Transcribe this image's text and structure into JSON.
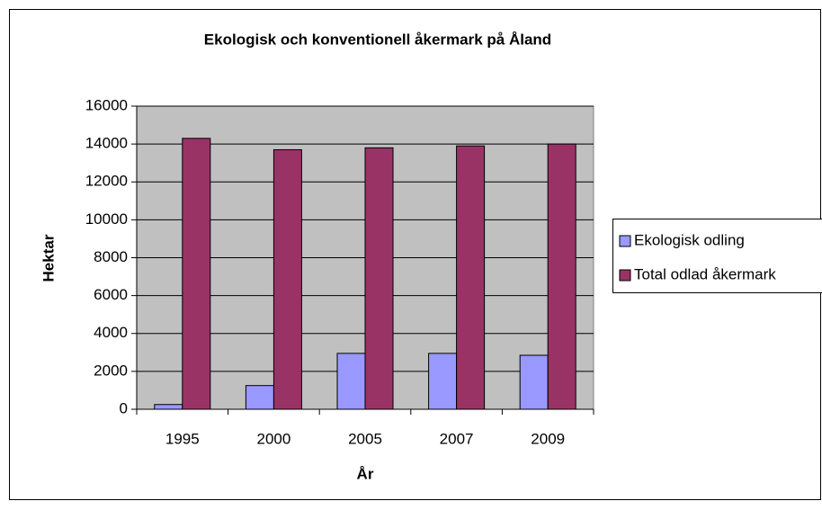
{
  "chart_data": {
    "type": "bar",
    "title": "Ekologisk och konventionell åkermark på Åland",
    "x_label": "År",
    "y_label": "Hektar",
    "categories": [
      "1995",
      "2000",
      "2005",
      "2007",
      "2009"
    ],
    "series": [
      {
        "name": "Ekologisk odling",
        "color": "#9999ff",
        "values": [
          250,
          1250,
          2950,
          2950,
          2850
        ]
      },
      {
        "name": "Total odlad åkermark",
        "color": "#993366",
        "values": [
          14300,
          13700,
          13800,
          13900,
          14000
        ]
      }
    ],
    "ylim": [
      0,
      16000
    ],
    "yticks": [
      0,
      2000,
      4000,
      6000,
      8000,
      10000,
      12000,
      14000,
      16000
    ],
    "grid": true,
    "legend": "right",
    "plot_background": "#c0c0c0"
  }
}
